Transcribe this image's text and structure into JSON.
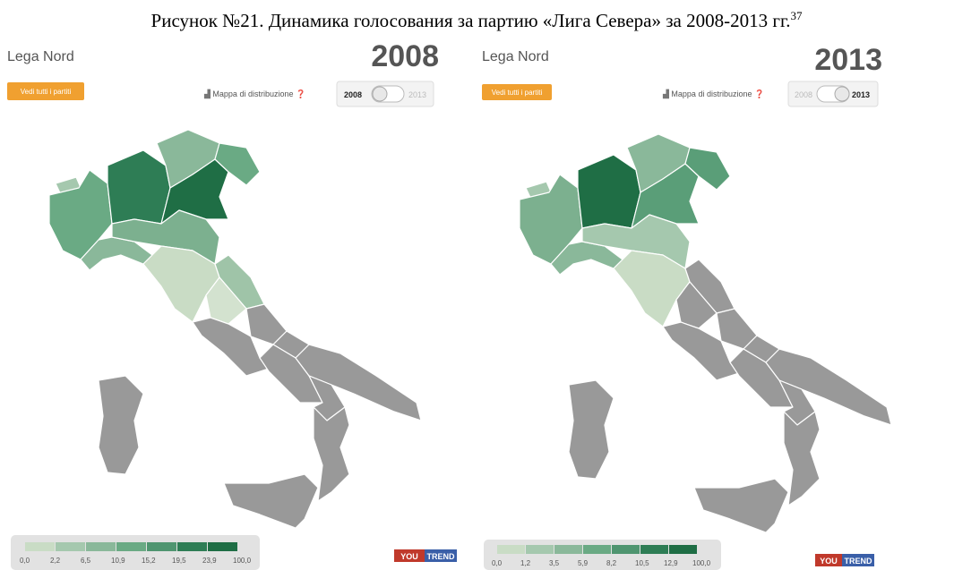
{
  "caption": {
    "text": "Рисунок №21. Динамика голосования за партию «Лига Севера» за 2008-2013 гг.",
    "note": "37"
  },
  "panels": [
    {
      "party": "Lega Nord",
      "year": "2008",
      "button": "Vedi tutti i partiti",
      "distribution_label": "Mappa di distribuzione",
      "toggle": [
        "2008",
        "2013"
      ],
      "legend": [
        "0,0",
        "2,2",
        "6,5",
        "10,9",
        "15,2",
        "19,5",
        "23,9",
        "100,0"
      ],
      "logo": [
        "YOU",
        "TREND"
      ]
    },
    {
      "party": "Lega Nord",
      "year": "2013",
      "button": "Vedi tutti i partiti",
      "distribution_label": "Mappa di distribuzione",
      "toggle": [
        "2008",
        "2013"
      ],
      "legend": [
        "0,0",
        "1,2",
        "3,5",
        "5,9",
        "8,2",
        "10,5",
        "12,9",
        "100,0"
      ],
      "logo": [
        "YOU",
        "TREND"
      ]
    }
  ]
}
